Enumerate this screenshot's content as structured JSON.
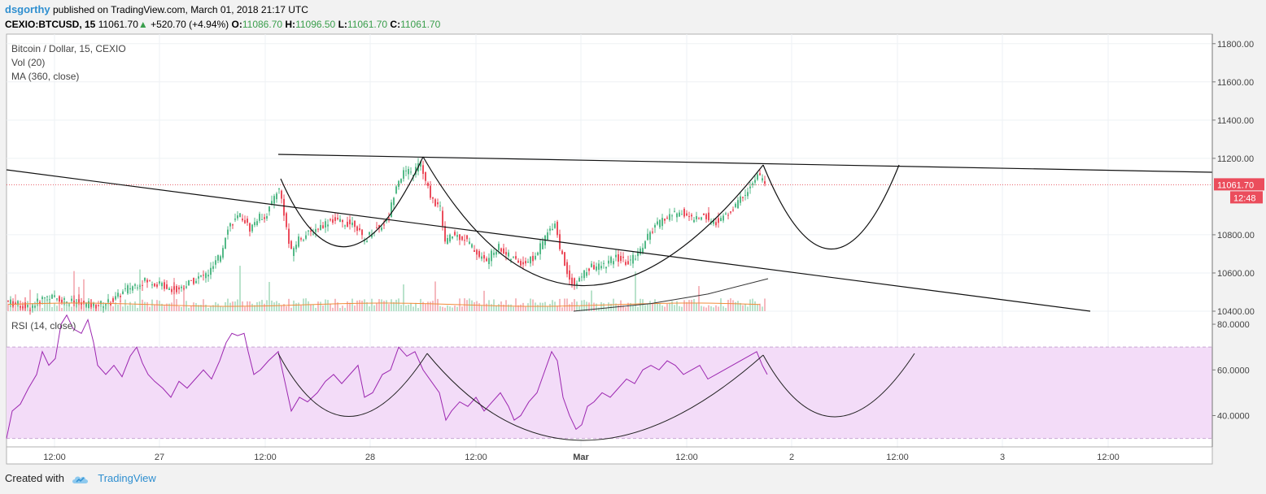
{
  "header": {
    "author": "dsgorthy",
    "published_text": "published on TradingView.com, March 01, 2018 21:17 UTC",
    "symbol": "CEXIO:BTCUSD, 15",
    "last": "11061.70",
    "change_arrow": "▲",
    "change": "+520.70 (+4.94%)",
    "open_label": "O:",
    "open": "11086.70",
    "high_label": "H:",
    "high": "11096.50",
    "low_label": "L:",
    "low": "11061.70",
    "close_label": "C:",
    "close": "11061.70"
  },
  "footer": {
    "created_with": "Created with",
    "brand": "TradingView",
    "brand_icon": "tradingview-cloud-icon"
  },
  "colors": {
    "up": "#53b987",
    "down": "#eb4d5c",
    "rsi": "#9c27b0",
    "rsi_band": "#f3dcf8",
    "price_line": "#e75c66",
    "ma": "#f28c3a",
    "link": "#2f8fd0"
  },
  "chart_data": [
    {
      "type": "candlestick",
      "title": "Bitcoin / Dollar, 15, CEXIO",
      "indicators": [
        "Vol (20)",
        "MA (360, close)"
      ],
      "x_ticks": [
        "12:00",
        "27",
        "12:00",
        "28",
        "12:00",
        "Mar",
        "12:00",
        "2",
        "12:00",
        "3",
        "12:00"
      ],
      "y_ticks": [
        "11800.00",
        "11600.00",
        "11400.00",
        "11200.00",
        "10800.00",
        "10600.00",
        "10400.00"
      ],
      "ylim": [
        10400,
        11850
      ],
      "last_price": "11061.70",
      "countdown": "12:48",
      "ohlc_path": [
        [
          0,
          10470
        ],
        [
          20,
          10440
        ],
        [
          40,
          10420
        ],
        [
          60,
          10480
        ],
        [
          80,
          10460
        ],
        [
          100,
          10440
        ],
        [
          120,
          10430
        ],
        [
          140,
          10450
        ],
        [
          160,
          10520
        ],
        [
          180,
          10560
        ],
        [
          200,
          10540
        ],
        [
          220,
          10510
        ],
        [
          240,
          10560
        ],
        [
          260,
          10600
        ],
        [
          275,
          10700
        ],
        [
          282,
          10840
        ],
        [
          290,
          10870
        ],
        [
          300,
          10900
        ],
        [
          310,
          10830
        ],
        [
          320,
          10890
        ],
        [
          330,
          10900
        ],
        [
          345,
          11050
        ],
        [
          350,
          10970
        ],
        [
          360,
          10700
        ],
        [
          370,
          10780
        ],
        [
          380,
          10800
        ],
        [
          395,
          10840
        ],
        [
          410,
          10880
        ],
        [
          425,
          10860
        ],
        [
          440,
          10860
        ],
        [
          450,
          10760
        ],
        [
          460,
          10820
        ],
        [
          470,
          10840
        ],
        [
          480,
          10880
        ],
        [
          490,
          11070
        ],
        [
          500,
          11130
        ],
        [
          510,
          11120
        ],
        [
          520,
          11180
        ],
        [
          525,
          11080
        ],
        [
          535,
          10980
        ],
        [
          545,
          10930
        ],
        [
          550,
          10760
        ],
        [
          560,
          10800
        ],
        [
          575,
          10780
        ],
        [
          590,
          10700
        ],
        [
          600,
          10660
        ],
        [
          615,
          10740
        ],
        [
          630,
          10680
        ],
        [
          645,
          10650
        ],
        [
          660,
          10680
        ],
        [
          672,
          10780
        ],
        [
          685,
          10870
        ],
        [
          690,
          10750
        ],
        [
          700,
          10600
        ],
        [
          710,
          10530
        ],
        [
          720,
          10600
        ],
        [
          730,
          10630
        ],
        [
          745,
          10640
        ],
        [
          760,
          10680
        ],
        [
          775,
          10650
        ],
        [
          790,
          10720
        ],
        [
          800,
          10800
        ],
        [
          815,
          10870
        ],
        [
          825,
          10900
        ],
        [
          840,
          10920
        ],
        [
          855,
          10880
        ],
        [
          870,
          10900
        ],
        [
          880,
          10860
        ],
        [
          895,
          10900
        ],
        [
          905,
          10940
        ],
        [
          915,
          11000
        ],
        [
          925,
          11050
        ],
        [
          935,
          11110
        ],
        [
          940,
          11086
        ]
      ],
      "volume_ma_note": "Vol (20)",
      "moving_average": [
        [
          705,
          10400
        ],
        [
          800,
          10440
        ],
        [
          870,
          10490
        ],
        [
          944,
          10570
        ]
      ]
    },
    {
      "type": "line",
      "title": "RSI (14, close)",
      "y_ticks": [
        "80.0000",
        "60.0000",
        "40.0000"
      ],
      "ylim": [
        27,
        85
      ],
      "band": [
        30,
        70
      ],
      "points": [
        [
          8,
          30
        ],
        [
          15,
          42
        ],
        [
          25,
          45
        ],
        [
          35,
          52
        ],
        [
          45,
          58
        ],
        [
          52,
          68
        ],
        [
          60,
          62
        ],
        [
          68,
          65
        ],
        [
          75,
          80
        ],
        [
          82,
          84
        ],
        [
          90,
          78
        ],
        [
          100,
          76
        ],
        [
          108,
          82
        ],
        [
          115,
          72
        ],
        [
          120,
          62
        ],
        [
          130,
          58
        ],
        [
          140,
          62
        ],
        [
          150,
          57
        ],
        [
          160,
          66
        ],
        [
          168,
          70
        ],
        [
          175,
          63
        ],
        [
          182,
          58
        ],
        [
          190,
          55
        ],
        [
          200,
          52
        ],
        [
          210,
          48
        ],
        [
          220,
          55
        ],
        [
          230,
          52
        ],
        [
          240,
          56
        ],
        [
          250,
          60
        ],
        [
          260,
          56
        ],
        [
          270,
          64
        ],
        [
          278,
          72
        ],
        [
          285,
          76
        ],
        [
          292,
          75
        ],
        [
          300,
          76
        ],
        [
          305,
          68
        ],
        [
          312,
          58
        ],
        [
          320,
          60
        ],
        [
          330,
          64
        ],
        [
          342,
          68
        ],
        [
          350,
          55
        ],
        [
          358,
          42
        ],
        [
          368,
          48
        ],
        [
          378,
          46
        ],
        [
          390,
          50
        ],
        [
          400,
          55
        ],
        [
          410,
          58
        ],
        [
          420,
          54
        ],
        [
          430,
          58
        ],
        [
          440,
          62
        ],
        [
          448,
          48
        ],
        [
          458,
          50
        ],
        [
          470,
          58
        ],
        [
          480,
          60
        ],
        [
          490,
          70
        ],
        [
          500,
          66
        ],
        [
          510,
          68
        ],
        [
          520,
          60
        ],
        [
          530,
          55
        ],
        [
          540,
          50
        ],
        [
          548,
          38
        ],
        [
          555,
          42
        ],
        [
          565,
          46
        ],
        [
          575,
          44
        ],
        [
          585,
          48
        ],
        [
          595,
          42
        ],
        [
          605,
          46
        ],
        [
          615,
          50
        ],
        [
          625,
          44
        ],
        [
          632,
          38
        ],
        [
          640,
          40
        ],
        [
          650,
          46
        ],
        [
          660,
          50
        ],
        [
          670,
          60
        ],
        [
          678,
          68
        ],
        [
          685,
          64
        ],
        [
          692,
          48
        ],
        [
          700,
          40
        ],
        [
          708,
          34
        ],
        [
          715,
          36
        ],
        [
          722,
          44
        ],
        [
          730,
          46
        ],
        [
          740,
          50
        ],
        [
          750,
          48
        ],
        [
          760,
          52
        ],
        [
          770,
          56
        ],
        [
          780,
          54
        ],
        [
          790,
          60
        ],
        [
          800,
          62
        ],
        [
          810,
          60
        ],
        [
          820,
          64
        ],
        [
          830,
          62
        ],
        [
          840,
          58
        ],
        [
          850,
          60
        ],
        [
          860,
          62
        ],
        [
          870,
          56
        ],
        [
          880,
          58
        ],
        [
          890,
          60
        ],
        [
          900,
          62
        ],
        [
          910,
          64
        ],
        [
          920,
          66
        ],
        [
          930,
          68
        ],
        [
          937,
          62
        ],
        [
          943,
          58
        ]
      ]
    }
  ]
}
